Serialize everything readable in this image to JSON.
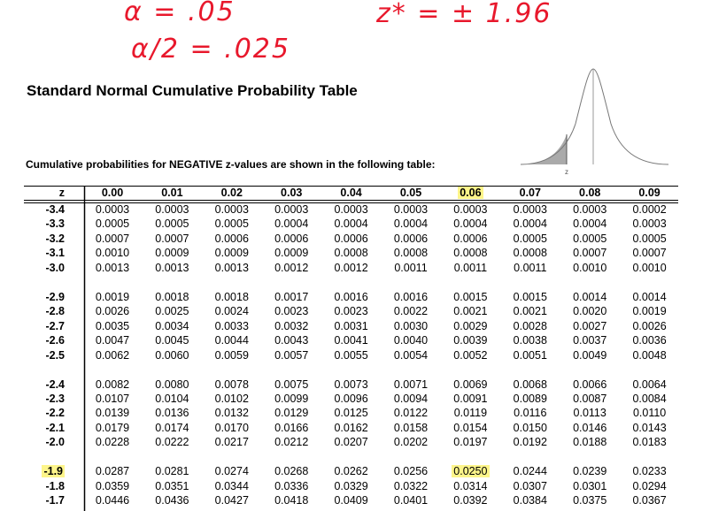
{
  "annotations": [
    "α = .05",
    "α/2 = .025",
    "z* = ± 1.96"
  ],
  "header": {
    "title": "Standard Normal Cumulative Probability Table",
    "subtitle": "Cumulative probabilities for NEGATIVE z-values are shown in the following table:",
    "curve_label": "z"
  },
  "table": {
    "columns": [
      "z",
      "0.00",
      "0.01",
      "0.02",
      "0.03",
      "0.04",
      "0.05",
      "0.06",
      "0.07",
      "0.08",
      "0.09"
    ],
    "rows": [
      [
        "-3.4",
        "0.0003",
        "0.0003",
        "0.0003",
        "0.0003",
        "0.0003",
        "0.0003",
        "0.0003",
        "0.0003",
        "0.0003",
        "0.0002"
      ],
      [
        "-3.3",
        "0.0005",
        "0.0005",
        "0.0005",
        "0.0004",
        "0.0004",
        "0.0004",
        "0.0004",
        "0.0004",
        "0.0004",
        "0.0003"
      ],
      [
        "-3.2",
        "0.0007",
        "0.0007",
        "0.0006",
        "0.0006",
        "0.0006",
        "0.0006",
        "0.0006",
        "0.0005",
        "0.0005",
        "0.0005"
      ],
      [
        "-3.1",
        "0.0010",
        "0.0009",
        "0.0009",
        "0.0009",
        "0.0008",
        "0.0008",
        "0.0008",
        "0.0008",
        "0.0007",
        "0.0007"
      ],
      [
        "-3.0",
        "0.0013",
        "0.0013",
        "0.0013",
        "0.0012",
        "0.0012",
        "0.0011",
        "0.0011",
        "0.0011",
        "0.0010",
        "0.0010"
      ],
      [
        "-2.9",
        "0.0019",
        "0.0018",
        "0.0018",
        "0.0017",
        "0.0016",
        "0.0016",
        "0.0015",
        "0.0015",
        "0.0014",
        "0.0014"
      ],
      [
        "-2.8",
        "0.0026",
        "0.0025",
        "0.0024",
        "0.0023",
        "0.0023",
        "0.0022",
        "0.0021",
        "0.0021",
        "0.0020",
        "0.0019"
      ],
      [
        "-2.7",
        "0.0035",
        "0.0034",
        "0.0033",
        "0.0032",
        "0.0031",
        "0.0030",
        "0.0029",
        "0.0028",
        "0.0027",
        "0.0026"
      ],
      [
        "-2.6",
        "0.0047",
        "0.0045",
        "0.0044",
        "0.0043",
        "0.0041",
        "0.0040",
        "0.0039",
        "0.0038",
        "0.0037",
        "0.0036"
      ],
      [
        "-2.5",
        "0.0062",
        "0.0060",
        "0.0059",
        "0.0057",
        "0.0055",
        "0.0054",
        "0.0052",
        "0.0051",
        "0.0049",
        "0.0048"
      ],
      [
        "-2.4",
        "0.0082",
        "0.0080",
        "0.0078",
        "0.0075",
        "0.0073",
        "0.0071",
        "0.0069",
        "0.0068",
        "0.0066",
        "0.0064"
      ],
      [
        "-2.3",
        "0.0107",
        "0.0104",
        "0.0102",
        "0.0099",
        "0.0096",
        "0.0094",
        "0.0091",
        "0.0089",
        "0.0087",
        "0.0084"
      ],
      [
        "-2.2",
        "0.0139",
        "0.0136",
        "0.0132",
        "0.0129",
        "0.0125",
        "0.0122",
        "0.0119",
        "0.0116",
        "0.0113",
        "0.0110"
      ],
      [
        "-2.1",
        "0.0179",
        "0.0174",
        "0.0170",
        "0.0166",
        "0.0162",
        "0.0158",
        "0.0154",
        "0.0150",
        "0.0146",
        "0.0143"
      ],
      [
        "-2.0",
        "0.0228",
        "0.0222",
        "0.0217",
        "0.0212",
        "0.0207",
        "0.0202",
        "0.0197",
        "0.0192",
        "0.0188",
        "0.0183"
      ],
      [
        "-1.9",
        "0.0287",
        "0.0281",
        "0.0274",
        "0.0268",
        "0.0262",
        "0.0256",
        "0.0250",
        "0.0244",
        "0.0239",
        "0.0233"
      ],
      [
        "-1.8",
        "0.0359",
        "0.0351",
        "0.0344",
        "0.0336",
        "0.0329",
        "0.0322",
        "0.0314",
        "0.0307",
        "0.0301",
        "0.0294"
      ],
      [
        "-1.7",
        "0.0446",
        "0.0436",
        "0.0427",
        "0.0418",
        "0.0409",
        "0.0401",
        "0.0392",
        "0.0384",
        "0.0375",
        "0.0367"
      ]
    ]
  }
}
